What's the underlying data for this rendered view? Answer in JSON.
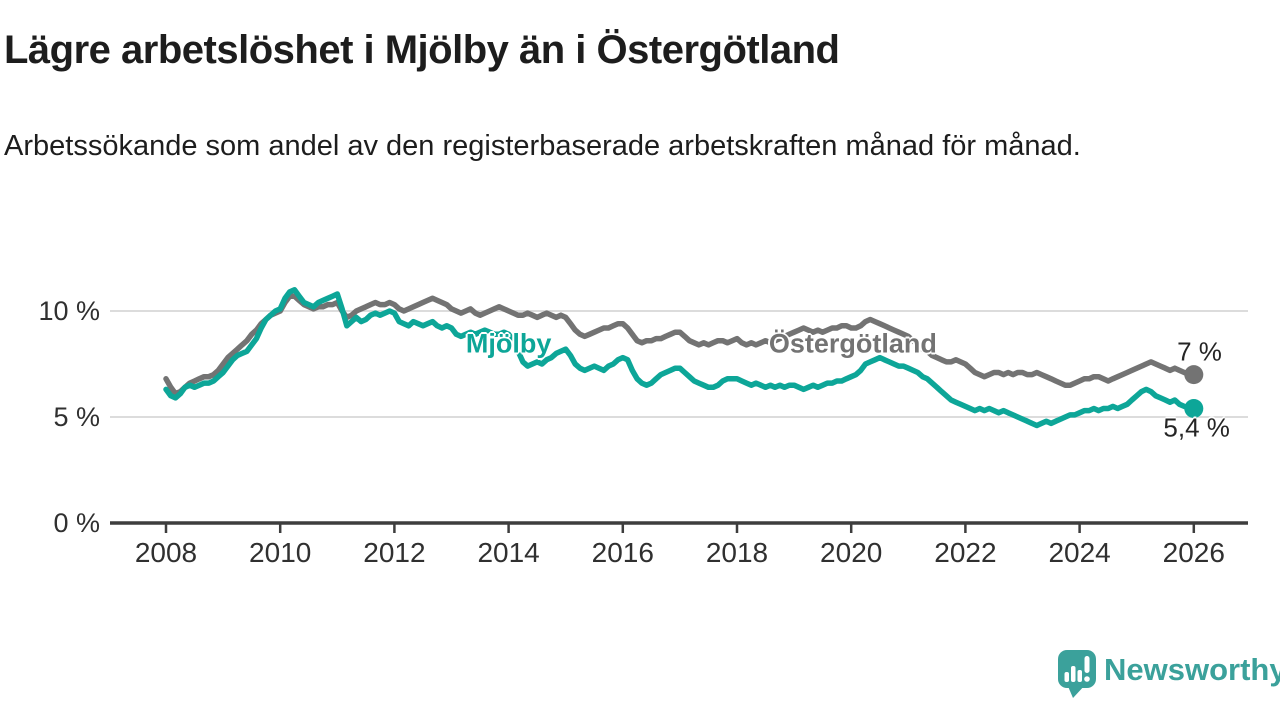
{
  "header": {
    "title": "Lägre arbetslöshet i Mjölby än i Östergötland",
    "subtitle": "Arbetssökande som andel av den registerbaserade arbetskraften månad för månad."
  },
  "colors": {
    "mjolby": "#0da698",
    "ostergotland": "#737373",
    "grid": "#dcdcdc",
    "axis": "#3d3d3d",
    "axis_text": "#303030",
    "title_text": "#1d1d1d",
    "end_label_text": "#252525",
    "brand_teal": "#3ba19b",
    "background": "#ffffff"
  },
  "chart_data": {
    "type": "line",
    "title": "Lägre arbetslöshet i Mjölby än i Östergötland",
    "xlabel": "",
    "ylabel": "",
    "unit": "%",
    "frequency": "monthly",
    "x_start": "2008-01",
    "x_end": "2026-01",
    "ylim": [
      0,
      11.5
    ],
    "grid": "horizontal",
    "x_ticks": [
      2008,
      2010,
      2012,
      2014,
      2016,
      2018,
      2020,
      2022,
      2024,
      2026
    ],
    "y_ticks": [
      {
        "value": 0,
        "label": "0 %"
      },
      {
        "value": 5,
        "label": "5 %"
      },
      {
        "value": 10,
        "label": "10 %"
      }
    ],
    "series": [
      {
        "id": "ostergotland",
        "name": "Östergötland",
        "color": "#737373",
        "end_label": "7 %",
        "end_value": 7.0,
        "label_pos": {
          "year": 2020.03,
          "value": 8.45
        },
        "end_label_pos": {
          "year": 2026.1,
          "value": 8.05
        },
        "values": [
          6.8,
          6.4,
          6.1,
          6.2,
          6.4,
          6.6,
          6.7,
          6.8,
          6.9,
          6.9,
          7.0,
          7.2,
          7.5,
          7.8,
          8.0,
          8.2,
          8.4,
          8.6,
          8.9,
          9.1,
          9.4,
          9.6,
          9.8,
          9.9,
          10.0,
          10.4,
          10.7,
          10.7,
          10.5,
          10.3,
          10.2,
          10.1,
          10.2,
          10.2,
          10.3,
          10.3,
          10.4,
          10.0,
          9.7,
          9.8,
          10.0,
          10.1,
          10.2,
          10.3,
          10.4,
          10.3,
          10.3,
          10.4,
          10.3,
          10.1,
          10.0,
          10.1,
          10.2,
          10.3,
          10.4,
          10.5,
          10.6,
          10.5,
          10.4,
          10.3,
          10.1,
          10.0,
          9.9,
          10.0,
          10.1,
          9.9,
          9.8,
          9.9,
          10.0,
          10.1,
          10.2,
          10.1,
          10.0,
          9.9,
          9.8,
          9.8,
          9.9,
          9.8,
          9.7,
          9.8,
          9.9,
          9.8,
          9.7,
          9.8,
          9.7,
          9.4,
          9.1,
          8.9,
          8.8,
          8.9,
          9.0,
          9.1,
          9.2,
          9.2,
          9.3,
          9.4,
          9.4,
          9.2,
          8.9,
          8.6,
          8.5,
          8.6,
          8.6,
          8.7,
          8.7,
          8.8,
          8.9,
          9.0,
          9.0,
          8.8,
          8.6,
          8.5,
          8.4,
          8.5,
          8.4,
          8.5,
          8.6,
          8.6,
          8.5,
          8.6,
          8.7,
          8.5,
          8.4,
          8.5,
          8.4,
          8.5,
          8.6,
          8.5,
          8.6,
          8.7,
          8.8,
          8.9,
          9.0,
          9.1,
          9.2,
          9.1,
          9.0,
          9.1,
          9.0,
          9.1,
          9.2,
          9.2,
          9.3,
          9.3,
          9.2,
          9.2,
          9.3,
          9.5,
          9.6,
          9.5,
          9.4,
          9.3,
          9.2,
          9.1,
          9.0,
          8.9,
          8.8,
          8.6,
          8.4,
          8.2,
          8.1,
          7.9,
          7.8,
          7.7,
          7.6,
          7.6,
          7.7,
          7.6,
          7.5,
          7.3,
          7.1,
          7.0,
          6.9,
          7.0,
          7.1,
          7.1,
          7.0,
          7.1,
          7.0,
          7.1,
          7.1,
          7.0,
          7.0,
          7.1,
          7.0,
          6.9,
          6.8,
          6.7,
          6.6,
          6.5,
          6.5,
          6.6,
          6.7,
          6.8,
          6.8,
          6.9,
          6.9,
          6.8,
          6.7,
          6.8,
          6.9,
          7.0,
          7.1,
          7.2,
          7.3,
          7.4,
          7.5,
          7.6,
          7.5,
          7.4,
          7.3,
          7.2,
          7.3,
          7.2,
          7.1,
          7.0,
          7.0
        ]
      },
      {
        "id": "mjolby",
        "name": "Mjölby",
        "color": "#0da698",
        "end_label": "5,4 %",
        "end_value": 5.4,
        "label_pos": {
          "year": 2014.0,
          "value": 8.45
        },
        "end_label_pos": {
          "year": 2026.05,
          "value": 4.5
        },
        "values": [
          6.3,
          6.0,
          5.9,
          6.1,
          6.4,
          6.5,
          6.4,
          6.5,
          6.6,
          6.6,
          6.7,
          6.9,
          7.1,
          7.4,
          7.7,
          7.9,
          8.0,
          8.1,
          8.4,
          8.7,
          9.2,
          9.6,
          9.8,
          10.0,
          10.1,
          10.6,
          10.9,
          11.0,
          10.7,
          10.4,
          10.3,
          10.2,
          10.4,
          10.5,
          10.6,
          10.7,
          10.8,
          10.1,
          9.3,
          9.5,
          9.7,
          9.5,
          9.6,
          9.8,
          9.9,
          9.8,
          9.9,
          10.0,
          9.9,
          9.5,
          9.4,
          9.3,
          9.5,
          9.4,
          9.3,
          9.4,
          9.5,
          9.3,
          9.2,
          9.3,
          9.2,
          8.9,
          8.8,
          8.9,
          9.0,
          8.9,
          9.0,
          9.1,
          9.0,
          8.9,
          8.9,
          9.0,
          8.9,
          8.6,
          8.1,
          7.6,
          7.4,
          7.5,
          7.6,
          7.5,
          7.7,
          7.8,
          8.0,
          8.1,
          8.2,
          7.9,
          7.5,
          7.3,
          7.2,
          7.3,
          7.4,
          7.3,
          7.2,
          7.4,
          7.5,
          7.7,
          7.8,
          7.7,
          7.2,
          6.8,
          6.6,
          6.5,
          6.6,
          6.8,
          7.0,
          7.1,
          7.2,
          7.3,
          7.3,
          7.1,
          6.9,
          6.7,
          6.6,
          6.5,
          6.4,
          6.4,
          6.5,
          6.7,
          6.8,
          6.8,
          6.8,
          6.7,
          6.6,
          6.5,
          6.6,
          6.5,
          6.4,
          6.5,
          6.4,
          6.5,
          6.4,
          6.5,
          6.5,
          6.4,
          6.3,
          6.4,
          6.5,
          6.4,
          6.5,
          6.6,
          6.6,
          6.7,
          6.7,
          6.8,
          6.9,
          7.0,
          7.2,
          7.5,
          7.6,
          7.7,
          7.8,
          7.7,
          7.6,
          7.5,
          7.4,
          7.4,
          7.3,
          7.2,
          7.1,
          6.9,
          6.8,
          6.6,
          6.4,
          6.2,
          6.0,
          5.8,
          5.7,
          5.6,
          5.5,
          5.4,
          5.3,
          5.4,
          5.3,
          5.4,
          5.3,
          5.2,
          5.3,
          5.2,
          5.1,
          5.0,
          4.9,
          4.8,
          4.7,
          4.6,
          4.7,
          4.8,
          4.7,
          4.8,
          4.9,
          5.0,
          5.1,
          5.1,
          5.2,
          5.3,
          5.3,
          5.4,
          5.3,
          5.4,
          5.4,
          5.5,
          5.4,
          5.5,
          5.6,
          5.8,
          6.0,
          6.2,
          6.3,
          6.2,
          6.0,
          5.9,
          5.8,
          5.7,
          5.8,
          5.6,
          5.5,
          5.4,
          5.4
        ]
      }
    ],
    "legend_position": "inline-labels"
  },
  "branding": {
    "logo_text": "Newsworthy"
  }
}
